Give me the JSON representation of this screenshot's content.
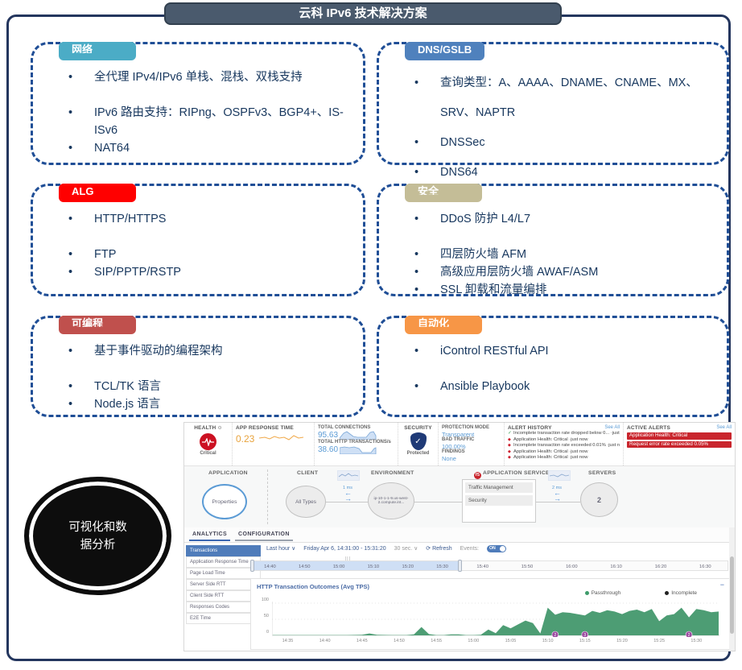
{
  "slide": {
    "title": "云科 IPv6 技术解决方案",
    "oval_line1": "可视化和数",
    "oval_line2": "据分析"
  },
  "boxes": [
    {
      "tab": "网络",
      "color": "#4BACC6",
      "items": [
        {
          "text": "全代理 IPv4/IPv6 单栈、混栈、双栈支持",
          "gap": false
        },
        {
          "text": "IPv6 路由支持：RIPng、OSPFv3、BGP4+、IS-ISv6",
          "gap": true
        },
        {
          "text": "NAT64",
          "gap": false
        }
      ]
    },
    {
      "tab": "DNS/GSLB",
      "color": "#4F81BD",
      "items": [
        {
          "text": "查询类型：A、AAAA、DNAME、CNAME、MX、SRV、NAPTR",
          "gap": false
        },
        {
          "text": "DNSSec",
          "gap": false
        },
        {
          "text": "DNS64",
          "gap": false
        }
      ]
    },
    {
      "tab": "ALG",
      "color": "#FF0000",
      "items": [
        {
          "text": "HTTP/HTTPS",
          "gap": false
        },
        {
          "text": "FTP",
          "gap": true
        },
        {
          "text": "SIP/PPTP/RSTP",
          "gap": false
        }
      ]
    },
    {
      "tab": "安全",
      "color": "#C4BD97",
      "items": [
        {
          "text": "DDoS 防护 L4/L7",
          "gap": false
        },
        {
          "text": "四层防火墙 AFM",
          "gap": true
        },
        {
          "text": "高级应用层防火墙 AWAF/ASM",
          "gap": false
        },
        {
          "text": "SSL 卸载和流量编排",
          "gap": false
        }
      ]
    },
    {
      "tab": "可编程",
      "color": "#C0504D",
      "items": [
        {
          "text": "基于事件驱动的编程架构",
          "gap": false
        },
        {
          "text": "TCL/TK 语言",
          "gap": true
        },
        {
          "text": "Node.js 语言",
          "gap": false
        }
      ]
    },
    {
      "tab": "自动化",
      "color": "#F79646",
      "items": [
        {
          "text": "iControl RESTful API",
          "gap": false
        },
        {
          "text": "Ansible Playbook",
          "gap": true
        }
      ]
    }
  ],
  "dashboard": {
    "topbar": {
      "health_label": "HEALTH",
      "health_status": "Critical",
      "app_response_label": "APP RESPONSE TIME",
      "app_response_value": "0.23",
      "total_connections_label": "TOTAL CONNECTIONS",
      "total_connections_value": "95.63",
      "total_http_label": "TOTAL HTTP TRANSACTIONS/s",
      "total_http_value": "38.60",
      "security_label": "SECURITY",
      "security_status": "Protected",
      "protection_mode_label": "PROTECTION MODE",
      "protection_mode_value": "Transparent",
      "bad_traffic_label": "BAD TRAFFIC",
      "bad_traffic_value": "100.00%",
      "findings_label": "FINDINGS",
      "findings_value": "None",
      "alert_history_label": "ALERT HISTORY",
      "see_all": "See All",
      "alert_history": [
        {
          "icon": "check",
          "text": "Incomplete transaction rate dropped below 0... ·just now"
        },
        {
          "icon": "alert",
          "text": "Application Health: Critical ·just now"
        },
        {
          "icon": "alert",
          "text": "Incomplete transaction rate exceeded 0.01% ·just now"
        },
        {
          "icon": "alert",
          "text": "Application Health: Critical ·just now"
        },
        {
          "icon": "alert",
          "text": "Application Health: Critical ·just now"
        }
      ],
      "active_alerts_label": "ACTIVE ALERTS",
      "active_alerts": [
        "Application Health: Critical",
        "Request error rate exceeded 0.05%"
      ]
    },
    "topology": {
      "application_label": "APPLICATION",
      "application_node": "Properties",
      "client_label": "CLIENT",
      "client_node": "All Types",
      "client_latency": "1 ms",
      "environment_label": "ENVIRONMENT",
      "environment_node": "ip-10-1-1-9.us-west-2.compute.int...",
      "services_label": "APPLICATION SERVICES",
      "services_logo": "f5",
      "services": [
        "Traffic Management",
        "Security"
      ],
      "server_latency": "2 ms",
      "servers_label": "SERVERS",
      "servers_node": "2"
    },
    "tabs": [
      {
        "label": "ANALYTICS",
        "active": true
      },
      {
        "label": "CONFIGURATION",
        "active": false
      }
    ],
    "sidebar": [
      {
        "label": "Transactions",
        "active": true
      },
      {
        "label": "Application Response Time",
        "active": false
      },
      {
        "label": "Page Load Time",
        "active": false
      },
      {
        "label": "Server Side RTT",
        "active": false
      },
      {
        "label": "Client Side RTT",
        "active": false
      },
      {
        "label": "Responses Codes",
        "active": false
      },
      {
        "label": "E2E Time",
        "active": false
      }
    ],
    "timebar": {
      "range_label": "Last hour",
      "date_label": "Friday Apr 6, 14:31:00 - 15:31:20",
      "interval_label": "30 sec.",
      "refresh_label": "Refresh",
      "events_label": "Events:",
      "events_state": "ON",
      "ticks_selected": [
        "14:40",
        "14:50",
        "15:00",
        "15:10",
        "15:20",
        "15:30"
      ],
      "ticks_rest": [
        "15:40",
        "15:50",
        "16:00",
        "16:10",
        "16:20",
        "16:30"
      ]
    }
  },
  "chart_data": {
    "type": "area",
    "title": "HTTP Transaction Outcomes (Avg TPS)",
    "legend": [
      {
        "label": "Passthrough",
        "color": "#3f9c6b"
      },
      {
        "label": "Incomplete",
        "color": "#222222"
      }
    ],
    "ylim": [
      0,
      100
    ],
    "yticks": [
      0,
      50,
      100
    ],
    "x_domain": [
      "14:33",
      "15:33"
    ],
    "xticks": [
      "14:35",
      "14:40",
      "14:45",
      "14:50",
      "14:55",
      "15:00",
      "15:05",
      "15:10",
      "15:15",
      "15:20",
      "15:25",
      "15:30"
    ],
    "series": [
      {
        "name": "Passthrough",
        "color": "#4d9d74",
        "points": [
          [
            "14:33",
            1
          ],
          [
            "14:35",
            1
          ],
          [
            "14:37",
            1
          ],
          [
            "14:39",
            1
          ],
          [
            "14:41",
            1
          ],
          [
            "14:43",
            1
          ],
          [
            "14:45",
            2
          ],
          [
            "14:46",
            6
          ],
          [
            "14:47",
            2
          ],
          [
            "14:49",
            1
          ],
          [
            "14:51",
            1
          ],
          [
            "14:52",
            3
          ],
          [
            "14:53",
            26
          ],
          [
            "14:54",
            4
          ],
          [
            "14:55",
            1
          ],
          [
            "14:56",
            1
          ],
          [
            "14:57",
            3
          ],
          [
            "14:58",
            3
          ],
          [
            "14:59",
            1
          ],
          [
            "15:00",
            1
          ],
          [
            "15:01",
            2
          ],
          [
            "15:02",
            18
          ],
          [
            "15:03",
            7
          ],
          [
            "15:04",
            32
          ],
          [
            "15:05",
            22
          ],
          [
            "15:06",
            34
          ],
          [
            "15:07",
            46
          ],
          [
            "15:08",
            38
          ],
          [
            "15:09",
            6
          ],
          [
            "15:10",
            86
          ],
          [
            "15:11",
            64
          ],
          [
            "15:12",
            72
          ],
          [
            "15:13",
            70
          ],
          [
            "15:14",
            66
          ],
          [
            "15:15",
            62
          ],
          [
            "15:16",
            76
          ],
          [
            "15:17",
            70
          ],
          [
            "15:18",
            78
          ],
          [
            "15:19",
            74
          ],
          [
            "15:20",
            66
          ],
          [
            "15:21",
            76
          ],
          [
            "15:22",
            80
          ],
          [
            "15:23",
            72
          ],
          [
            "15:24",
            82
          ],
          [
            "15:25",
            44
          ],
          [
            "15:26",
            62
          ],
          [
            "15:27",
            66
          ],
          [
            "15:28",
            86
          ],
          [
            "15:29",
            56
          ],
          [
            "15:30",
            82
          ],
          [
            "15:31",
            78
          ],
          [
            "15:32",
            72
          ],
          [
            "15:33",
            74
          ]
        ]
      }
    ],
    "event_markers": [
      {
        "time": "15:11",
        "label": "2"
      },
      {
        "time": "15:15",
        "label": "3"
      },
      {
        "time": "15:29",
        "label": "2"
      }
    ]
  }
}
